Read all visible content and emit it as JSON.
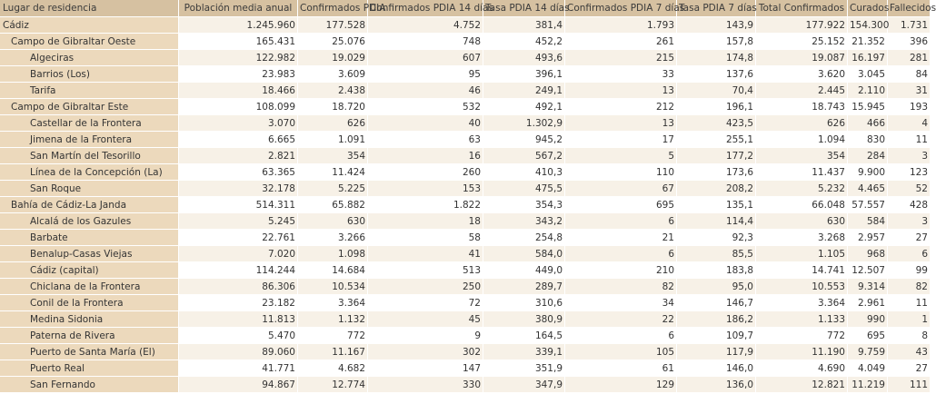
{
  "columns": [
    "Lugar de residencia",
    "Población media anual",
    "Confirmados PDIA",
    "Confirmados PDIA 14 días",
    "Tasa PDIA 14 días",
    "Confirmados PDIA 7 días",
    "Tasa PDIA 7 días",
    "Total Confirmados",
    "Curados",
    "Fallecidos"
  ],
  "rows": [
    {
      "level": 0,
      "cells": [
        "Cádiz",
        "1.245.960",
        "177.528",
        "4.752",
        "381,4",
        "1.793",
        "143,9",
        "177.922",
        "154.300",
        "1.731"
      ]
    },
    {
      "level": 1,
      "cells": [
        "Campo de Gibraltar Oeste",
        "165.431",
        "25.076",
        "748",
        "452,2",
        "261",
        "157,8",
        "25.152",
        "21.352",
        "396"
      ]
    },
    {
      "level": 2,
      "cells": [
        "Algeciras",
        "122.982",
        "19.029",
        "607",
        "493,6",
        "215",
        "174,8",
        "19.087",
        "16.197",
        "281"
      ]
    },
    {
      "level": 2,
      "cells": [
        "Barrios (Los)",
        "23.983",
        "3.609",
        "95",
        "396,1",
        "33",
        "137,6",
        "3.620",
        "3.045",
        "84"
      ]
    },
    {
      "level": 2,
      "cells": [
        "Tarifa",
        "18.466",
        "2.438",
        "46",
        "249,1",
        "13",
        "70,4",
        "2.445",
        "2.110",
        "31"
      ]
    },
    {
      "level": 1,
      "cells": [
        "Campo de Gibraltar Este",
        "108.099",
        "18.720",
        "532",
        "492,1",
        "212",
        "196,1",
        "18.743",
        "15.945",
        "193"
      ]
    },
    {
      "level": 2,
      "cells": [
        "Castellar de la Frontera",
        "3.070",
        "626",
        "40",
        "1.302,9",
        "13",
        "423,5",
        "626",
        "466",
        "4"
      ]
    },
    {
      "level": 2,
      "cells": [
        "Jimena de la Frontera",
        "6.665",
        "1.091",
        "63",
        "945,2",
        "17",
        "255,1",
        "1.094",
        "830",
        "11"
      ]
    },
    {
      "level": 2,
      "cells": [
        "San Martín del Tesorillo",
        "2.821",
        "354",
        "16",
        "567,2",
        "5",
        "177,2",
        "354",
        "284",
        "3"
      ]
    },
    {
      "level": 2,
      "cells": [
        "Línea de la Concepción (La)",
        "63.365",
        "11.424",
        "260",
        "410,3",
        "110",
        "173,6",
        "11.437",
        "9.900",
        "123"
      ]
    },
    {
      "level": 2,
      "cells": [
        "San Roque",
        "32.178",
        "5.225",
        "153",
        "475,5",
        "67",
        "208,2",
        "5.232",
        "4.465",
        "52"
      ]
    },
    {
      "level": 1,
      "cells": [
        "Bahía de Cádiz-La Janda",
        "514.311",
        "65.882",
        "1.822",
        "354,3",
        "695",
        "135,1",
        "66.048",
        "57.557",
        "428"
      ]
    },
    {
      "level": 2,
      "cells": [
        "Alcalá de los Gazules",
        "5.245",
        "630",
        "18",
        "343,2",
        "6",
        "114,4",
        "630",
        "584",
        "3"
      ]
    },
    {
      "level": 2,
      "cells": [
        "Barbate",
        "22.761",
        "3.266",
        "58",
        "254,8",
        "21",
        "92,3",
        "3.268",
        "2.957",
        "27"
      ]
    },
    {
      "level": 2,
      "cells": [
        "Benalup-Casas Viejas",
        "7.020",
        "1.098",
        "41",
        "584,0",
        "6",
        "85,5",
        "1.105",
        "968",
        "6"
      ]
    },
    {
      "level": 2,
      "cells": [
        "Cádiz (capital)",
        "114.244",
        "14.684",
        "513",
        "449,0",
        "210",
        "183,8",
        "14.741",
        "12.507",
        "99"
      ]
    },
    {
      "level": 2,
      "cells": [
        "Chiclana de la Frontera",
        "86.306",
        "10.534",
        "250",
        "289,7",
        "82",
        "95,0",
        "10.553",
        "9.314",
        "82"
      ]
    },
    {
      "level": 2,
      "cells": [
        "Conil de la Frontera",
        "23.182",
        "3.364",
        "72",
        "310,6",
        "34",
        "146,7",
        "3.364",
        "2.961",
        "11"
      ]
    },
    {
      "level": 2,
      "cells": [
        "Medina Sidonia",
        "11.813",
        "1.132",
        "45",
        "380,9",
        "22",
        "186,2",
        "1.133",
        "990",
        "1"
      ]
    },
    {
      "level": 2,
      "cells": [
        "Paterna de Rivera",
        "5.470",
        "772",
        "9",
        "164,5",
        "6",
        "109,7",
        "772",
        "695",
        "8"
      ]
    },
    {
      "level": 2,
      "cells": [
        "Puerto de Santa María (El)",
        "89.060",
        "11.167",
        "302",
        "339,1",
        "105",
        "117,9",
        "11.190",
        "9.759",
        "43"
      ]
    },
    {
      "level": 2,
      "cells": [
        "Puerto Real",
        "41.771",
        "4.682",
        "147",
        "351,9",
        "61",
        "146,0",
        "4.690",
        "4.049",
        "27"
      ]
    },
    {
      "level": 2,
      "cells": [
        "San Fernando",
        "94.867",
        "12.774",
        "330",
        "347,9",
        "129",
        "136,0",
        "12.821",
        "11.219",
        "111"
      ]
    }
  ]
}
